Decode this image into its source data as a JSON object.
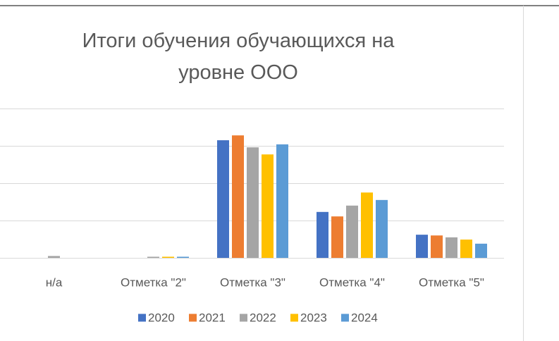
{
  "chart_data": {
    "type": "bar",
    "title": "Итоги обучения обучающихся на уровне ООО",
    "categories": [
      "н/а",
      "Отметка \"2\"",
      "Отметка \"3\"",
      "Отметка \"4\"",
      "Отметка \"5\""
    ],
    "series": [
      {
        "name": "2020",
        "color": "#4472c4",
        "values": [
          0,
          0,
          31.5,
          12.3,
          6.2
        ]
      },
      {
        "name": "2021",
        "color": "#ed7d31",
        "values": [
          0,
          0,
          32.8,
          11.1,
          6.0
        ]
      },
      {
        "name": "2022",
        "color": "#a5a5a5",
        "values": [
          0.5,
          0.3,
          29.6,
          14.0,
          5.5
        ]
      },
      {
        "name": "2023",
        "color": "#ffc000",
        "values": [
          0,
          0.3,
          27.7,
          17.5,
          4.9
        ]
      },
      {
        "name": "2024",
        "color": "#5b9bd5",
        "values": [
          0,
          0.3,
          30.4,
          15.5,
          3.8
        ]
      }
    ],
    "ylim": [
      0,
      40
    ],
    "yticks": [
      0,
      10,
      20,
      30,
      40
    ],
    "grid": true,
    "legend": "bottom"
  }
}
